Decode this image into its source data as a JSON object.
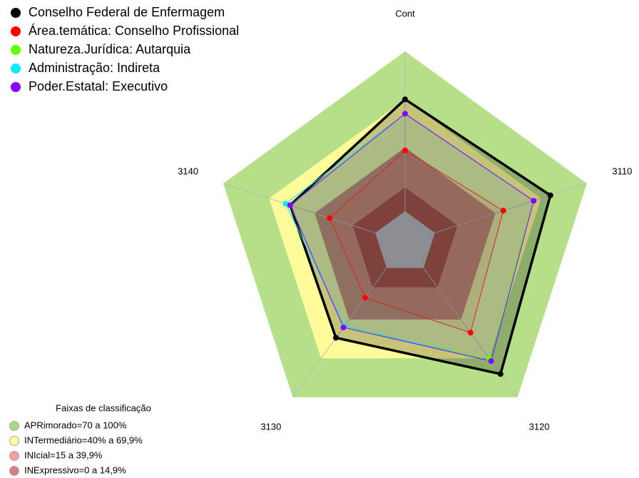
{
  "chart_data": {
    "type": "radar",
    "axes": [
      "Cont",
      "3110",
      "3120",
      "3130",
      "3140"
    ],
    "rlim": [
      0,
      100
    ],
    "series": [
      {
        "name": "Conselho Federal de Enfermagem",
        "color": "#000000",
        "values": [
          70,
          76,
          82,
          54,
          56
        ]
      },
      {
        "name": "Área.temática: Conselho Profissional",
        "color": "#ff0000",
        "values": [
          38,
          45,
          50,
          23,
          30
        ]
      },
      {
        "name": "Natureza.Jurídica: Autarquia",
        "color": "#66ff00",
        "values": [
          61,
          65,
          70,
          46,
          56
        ]
      },
      {
        "name": "Administração: Indireta",
        "color": "#00eeff",
        "values": [
          61,
          65,
          72,
          45,
          59
        ]
      },
      {
        "name": "Poder.Estatal: Executivo",
        "color": "#8800ff",
        "values": [
          61,
          65,
          72,
          46,
          56
        ]
      }
    ],
    "legend_title": "Faixas de classificação",
    "bands": [
      {
        "name": "APRimorado=70 a 100%",
        "color": "#b5df88",
        "legend_color": "#a8d880",
        "max": 100
      },
      {
        "name": "INTermediário=40% a 69,9%",
        "color": "#fdfb9a",
        "legend_color": "#fffc99",
        "max": 69.9
      },
      {
        "name": "INIcial=15 a 39,9%",
        "color": "#d08060",
        "legend_color": "#f5a0a0",
        "max": 39.9
      },
      {
        "name": "INExpressivo=0 a 14,9%",
        "color": "#a83a28",
        "legend_color": "#d88080",
        "max": 14.9
      }
    ]
  }
}
